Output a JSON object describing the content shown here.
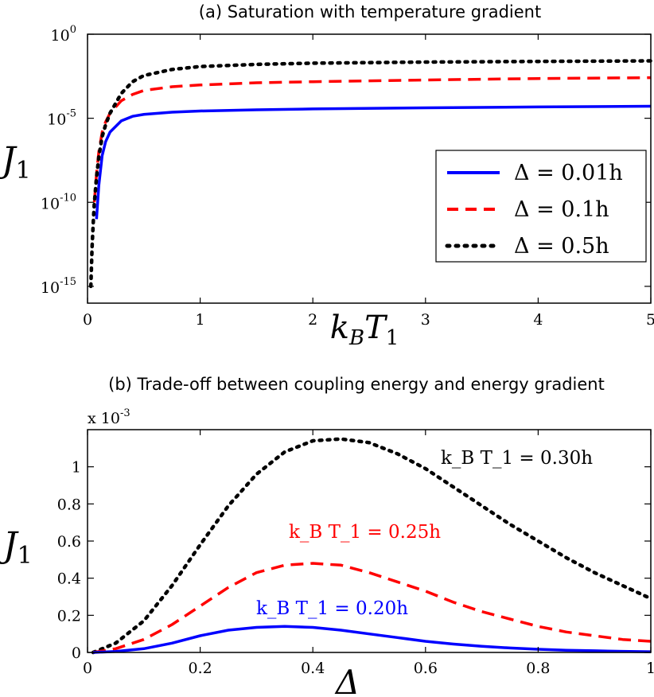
{
  "chart_data": [
    {
      "type": "line",
      "title": "(a) Saturation with temperature gradient",
      "xlabel": "k_B T_1",
      "ylabel": "J_1",
      "yscale": "log",
      "xlim": [
        0,
        5
      ],
      "ylim": [
        1e-16,
        1
      ],
      "xticks": [
        "0",
        "1",
        "2",
        "3",
        "4",
        "5"
      ],
      "yticks": [
        {
          "base": "10",
          "exp": "0"
        },
        {
          "base": "10",
          "exp": "-5"
        },
        {
          "base": "10",
          "exp": "-10"
        },
        {
          "base": "10",
          "exp": "-15"
        }
      ],
      "legend_position": "center-right",
      "grid": false,
      "series": [
        {
          "name": "Δ = 0.01h",
          "color": "#0000ff",
          "style": "solid",
          "x": [
            0.08,
            0.1,
            0.13,
            0.16,
            0.2,
            0.3,
            0.4,
            0.5,
            0.75,
            1,
            1.5,
            2,
            3,
            4,
            5
          ],
          "y": [
            1e-11,
            1e-09,
            6e-08,
            4e-07,
            1.5e-06,
            7e-06,
            1.3e-05,
            1.7e-05,
            2.3e-05,
            2.7e-05,
            3.2e-05,
            3.6e-05,
            4.2e-05,
            4.7e-05,
            5.2e-05
          ]
        },
        {
          "name": "Δ = 0.1h",
          "color": "#ff0000",
          "style": "dashed",
          "x": [
            0.06,
            0.08,
            0.1,
            0.13,
            0.16,
            0.2,
            0.3,
            0.4,
            0.5,
            0.75,
            1,
            1.5,
            2,
            3,
            4,
            5
          ],
          "y": [
            1e-10,
            5e-09,
            1e-07,
            1.5e-06,
            6e-06,
            2e-05,
            0.00011,
            0.00026,
            0.00045,
            0.00075,
            0.00095,
            0.0013,
            0.0015,
            0.0019,
            0.0023,
            0.0026
          ]
        },
        {
          "name": "Δ = 0.5h",
          "color": "#000000",
          "style": "dotted",
          "x": [
            0.03,
            0.04,
            0.05,
            0.06,
            0.08,
            0.1,
            0.13,
            0.16,
            0.2,
            0.3,
            0.4,
            0.5,
            0.75,
            1,
            1.5,
            2,
            3,
            4,
            5
          ],
          "y": [
            1e-15,
            2e-13,
            5e-12,
            8e-11,
            3e-09,
            5e-08,
            8e-07,
            4e-06,
            2e-05,
            0.0003,
            0.0015,
            0.0035,
            0.008,
            0.012,
            0.016,
            0.019,
            0.022,
            0.024,
            0.026
          ]
        }
      ]
    },
    {
      "type": "line",
      "title": "(b)  Trade-off between coupling energy and energy gradient",
      "xlabel": "Δ",
      "ylabel": "J_1",
      "multiplier": "x 10",
      "multiplier_exp": "-3",
      "xlim": [
        0,
        1
      ],
      "ylim": [
        0,
        1.2
      ],
      "xticks": [
        "0",
        "0.2",
        "0.4",
        "0.6",
        "0.8",
        "1"
      ],
      "yticks": [
        "0",
        "0.2",
        "0.4",
        "0.6",
        "0.8",
        "1"
      ],
      "grid": false,
      "series": [
        {
          "name": "k_B T_1 = 0.30h",
          "color": "#000000",
          "style": "dotted",
          "x": [
            0.01,
            0.05,
            0.1,
            0.15,
            0.2,
            0.25,
            0.3,
            0.35,
            0.4,
            0.45,
            0.5,
            0.55,
            0.6,
            0.65,
            0.7,
            0.75,
            0.8,
            0.85,
            0.9,
            0.95,
            1.0
          ],
          "y": [
            0.0,
            0.05,
            0.17,
            0.36,
            0.58,
            0.79,
            0.96,
            1.08,
            1.14,
            1.15,
            1.13,
            1.07,
            0.99,
            0.89,
            0.79,
            0.69,
            0.6,
            0.51,
            0.43,
            0.36,
            0.29
          ]
        },
        {
          "name": "k_B T_1 = 0.25h",
          "color": "#ff0000",
          "style": "dashed",
          "x": [
            0.01,
            0.05,
            0.1,
            0.15,
            0.2,
            0.25,
            0.3,
            0.35,
            0.4,
            0.45,
            0.5,
            0.55,
            0.6,
            0.65,
            0.7,
            0.75,
            0.8,
            0.85,
            0.9,
            0.95,
            1.0
          ],
          "y": [
            0.0,
            0.02,
            0.07,
            0.15,
            0.25,
            0.35,
            0.43,
            0.47,
            0.48,
            0.47,
            0.43,
            0.38,
            0.33,
            0.27,
            0.22,
            0.18,
            0.14,
            0.11,
            0.09,
            0.07,
            0.06
          ]
        },
        {
          "name": "k_B T_1 = 0.20h",
          "color": "#0000ff",
          "style": "solid",
          "x": [
            0.01,
            0.05,
            0.1,
            0.15,
            0.2,
            0.25,
            0.3,
            0.35,
            0.4,
            0.45,
            0.5,
            0.55,
            0.6,
            0.65,
            0.7,
            0.75,
            0.8,
            0.85,
            0.9,
            0.95,
            1.0
          ],
          "y": [
            0.0,
            0.005,
            0.02,
            0.05,
            0.09,
            0.12,
            0.135,
            0.14,
            0.135,
            0.12,
            0.1,
            0.08,
            0.06,
            0.045,
            0.033,
            0.024,
            0.017,
            0.012,
            0.009,
            0.006,
            0.004
          ]
        }
      ]
    }
  ]
}
